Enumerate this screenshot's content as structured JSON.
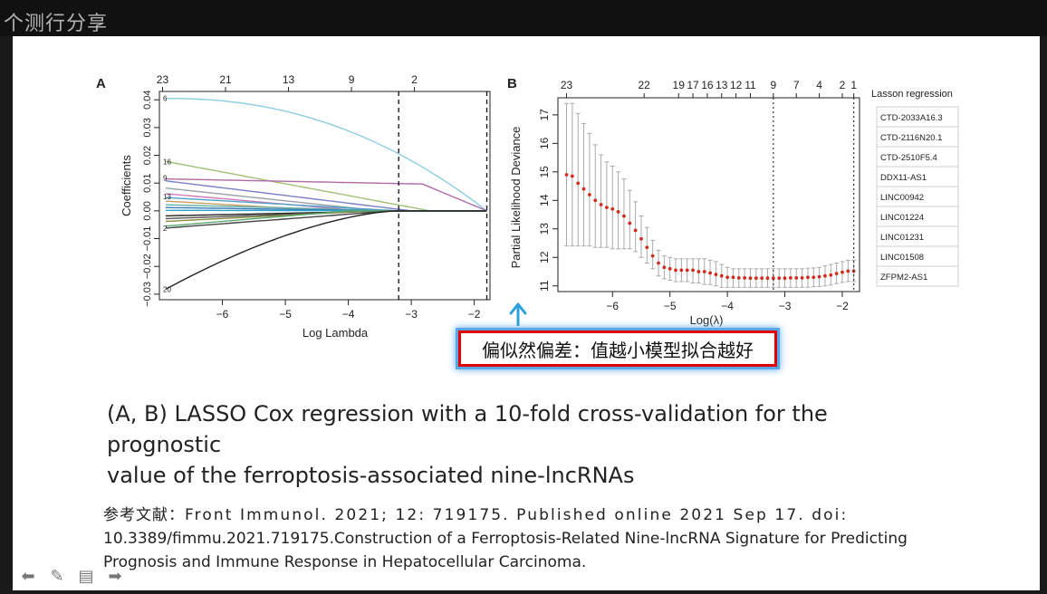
{
  "window": {
    "watermark": "个测行分享"
  },
  "panel_a": {
    "letter": "A",
    "xlabel": "Log Lambda",
    "ylabel": "Coefficients",
    "x_ticks": [
      -6,
      -5,
      -4,
      -3,
      -2
    ],
    "y_ticks": [
      -0.03,
      -0.02,
      -0.01,
      0.0,
      0.01,
      0.02,
      0.03,
      0.04
    ],
    "top_ticks": [
      {
        "x": -6.95,
        "label": "23"
      },
      {
        "x": -5.95,
        "label": "21"
      },
      {
        "x": -4.95,
        "label": "13"
      },
      {
        "x": -3.95,
        "label": "9"
      },
      {
        "x": -2.95,
        "label": "2"
      }
    ],
    "xlim": [
      -7.0,
      -1.75
    ],
    "ylim": [
      -0.032,
      0.043
    ],
    "vlines": [
      -3.2,
      -1.8
    ],
    "end_labels": [
      {
        "label": "6",
        "y": 0.0405
      },
      {
        "label": "16",
        "y": 0.0178
      },
      {
        "label": "9",
        "y": 0.0118
      },
      {
        "label": "13",
        "y": 0.0052
      },
      {
        "label": "20",
        "y": -0.0282
      },
      {
        "label": "2",
        "y": -0.0062
      }
    ],
    "series": [
      {
        "color": "#8ccde0",
        "y0": 0.0405,
        "shape": "concave",
        "zero_at": -1.8
      },
      {
        "color": "#a3c07a",
        "y0": 0.0178,
        "shape": "linear",
        "zero_at": -2.7
      },
      {
        "color": "#b06aa6",
        "y0": 0.0115,
        "shape": "flat_then_drop",
        "zero_at": -1.8
      },
      {
        "color": "#7a7fc8",
        "y0": 0.0108,
        "shape": "linear",
        "zero_at": -3.0
      },
      {
        "color": "#9aa0a8",
        "y0": 0.0082,
        "shape": "linear",
        "zero_at": -3.5
      },
      {
        "color": "#d07ab8",
        "y0": 0.0062,
        "shape": "linear",
        "zero_at": -3.8
      },
      {
        "color": "#4fa2c8",
        "y0": 0.0048,
        "shape": "linear",
        "zero_at": -3.2
      },
      {
        "color": "#c8a060",
        "y0": 0.0035,
        "shape": "linear",
        "zero_at": -4.2
      },
      {
        "color": "#62b0a8",
        "y0": 0.0022,
        "shape": "linear",
        "zero_at": -3.2
      },
      {
        "color": "#3a7ab8",
        "y0": 0.0012,
        "shape": "linear",
        "zero_at": -3.3
      },
      {
        "color": "#2aa2d0",
        "y0": 0.0002,
        "shape": "linear",
        "zero_at": -1.8
      },
      {
        "color": "#222222",
        "y0": -0.0018,
        "shape": "linear",
        "zero_at": -3.2
      },
      {
        "color": "#555555",
        "y0": -0.0028,
        "shape": "linear",
        "zero_at": -3.4
      },
      {
        "color": "#8a8a40",
        "y0": -0.0038,
        "shape": "linear",
        "zero_at": -3.6
      },
      {
        "color": "#58a870",
        "y0": -0.0055,
        "shape": "linear",
        "zero_at": -4.0
      },
      {
        "color": "#444444",
        "y0": -0.0062,
        "shape": "linear",
        "zero_at": -3.3
      },
      {
        "color": "#222222",
        "y0": -0.0282,
        "shape": "convex",
        "zero_at": -3.2
      }
    ]
  },
  "chart_data": {
    "type": "scatter",
    "xlabel": "Log(λ)",
    "ylabel": "Partial Likelihood Deviance",
    "x_ticks": [
      -6,
      -5,
      -4,
      -3,
      -2
    ],
    "y_ticks": [
      11,
      12,
      13,
      14,
      15,
      16,
      17
    ],
    "xlim": [
      -6.95,
      -1.7
    ],
    "ylim": [
      10.8,
      17.6
    ],
    "top_ticks": [
      {
        "x": -6.8,
        "label": "23"
      },
      {
        "x": -5.45,
        "label": "22"
      },
      {
        "x": -4.85,
        "label": "19"
      },
      {
        "x": -4.6,
        "label": "17"
      },
      {
        "x": -4.35,
        "label": "16"
      },
      {
        "x": -4.1,
        "label": "13"
      },
      {
        "x": -3.85,
        "label": "12"
      },
      {
        "x": -3.6,
        "label": "11"
      },
      {
        "x": -3.2,
        "label": "9"
      },
      {
        "x": -2.8,
        "label": "7"
      },
      {
        "x": -2.4,
        "label": "4"
      },
      {
        "x": -2.0,
        "label": "2"
      },
      {
        "x": -1.8,
        "label": "1"
      }
    ],
    "vlines": [
      -3.2,
      -1.8
    ],
    "points": [
      {
        "x": -6.8,
        "y": 14.9,
        "lo": 12.4,
        "hi": 17.4
      },
      {
        "x": -6.7,
        "y": 14.85,
        "lo": 12.4,
        "hi": 17.4
      },
      {
        "x": -6.6,
        "y": 14.6,
        "lo": 12.4,
        "hi": 17.05
      },
      {
        "x": -6.5,
        "y": 14.4,
        "lo": 12.4,
        "hi": 16.7
      },
      {
        "x": -6.4,
        "y": 14.2,
        "lo": 12.4,
        "hi": 16.35
      },
      {
        "x": -6.3,
        "y": 14.0,
        "lo": 12.35,
        "hi": 15.95
      },
      {
        "x": -6.2,
        "y": 13.85,
        "lo": 12.35,
        "hi": 15.6
      },
      {
        "x": -6.1,
        "y": 13.75,
        "lo": 12.35,
        "hi": 15.35
      },
      {
        "x": -6.0,
        "y": 13.7,
        "lo": 12.3,
        "hi": 15.2
      },
      {
        "x": -5.9,
        "y": 13.6,
        "lo": 12.3,
        "hi": 15.0
      },
      {
        "x": -5.8,
        "y": 13.45,
        "lo": 12.3,
        "hi": 14.75
      },
      {
        "x": -5.7,
        "y": 13.2,
        "lo": 12.3,
        "hi": 14.35
      },
      {
        "x": -5.6,
        "y": 12.95,
        "lo": 12.2,
        "hi": 13.95
      },
      {
        "x": -5.5,
        "y": 12.65,
        "lo": 12.0,
        "hi": 13.45
      },
      {
        "x": -5.4,
        "y": 12.35,
        "lo": 11.8,
        "hi": 13.05
      },
      {
        "x": -5.3,
        "y": 12.05,
        "lo": 11.6,
        "hi": 12.6
      },
      {
        "x": -5.2,
        "y": 11.8,
        "lo": 11.35,
        "hi": 12.25
      },
      {
        "x": -5.1,
        "y": 11.65,
        "lo": 11.25,
        "hi": 12.05
      },
      {
        "x": -5.0,
        "y": 11.6,
        "lo": 11.2,
        "hi": 12.0
      },
      {
        "x": -4.9,
        "y": 11.55,
        "lo": 11.15,
        "hi": 11.95
      },
      {
        "x": -4.8,
        "y": 11.55,
        "lo": 11.15,
        "hi": 11.95
      },
      {
        "x": -4.7,
        "y": 11.55,
        "lo": 11.15,
        "hi": 11.95
      },
      {
        "x": -4.6,
        "y": 11.55,
        "lo": 11.1,
        "hi": 11.95
      },
      {
        "x": -4.5,
        "y": 11.5,
        "lo": 11.1,
        "hi": 11.95
      },
      {
        "x": -4.4,
        "y": 11.5,
        "lo": 11.05,
        "hi": 11.95
      },
      {
        "x": -4.3,
        "y": 11.45,
        "lo": 11.05,
        "hi": 11.9
      },
      {
        "x": -4.2,
        "y": 11.4,
        "lo": 11.0,
        "hi": 11.85
      },
      {
        "x": -4.1,
        "y": 11.35,
        "lo": 10.95,
        "hi": 11.75
      },
      {
        "x": -4.0,
        "y": 11.3,
        "lo": 10.95,
        "hi": 11.65
      },
      {
        "x": -3.9,
        "y": 11.3,
        "lo": 10.95,
        "hi": 11.6
      },
      {
        "x": -3.8,
        "y": 11.28,
        "lo": 10.95,
        "hi": 11.6
      },
      {
        "x": -3.7,
        "y": 11.28,
        "lo": 10.95,
        "hi": 11.6
      },
      {
        "x": -3.6,
        "y": 11.27,
        "lo": 10.95,
        "hi": 11.6
      },
      {
        "x": -3.5,
        "y": 11.27,
        "lo": 10.95,
        "hi": 11.6
      },
      {
        "x": -3.4,
        "y": 11.27,
        "lo": 10.95,
        "hi": 11.6
      },
      {
        "x": -3.3,
        "y": 11.27,
        "lo": 10.95,
        "hi": 11.6
      },
      {
        "x": -3.2,
        "y": 11.27,
        "lo": 10.95,
        "hi": 11.6
      },
      {
        "x": -3.1,
        "y": 11.27,
        "lo": 10.95,
        "hi": 11.6
      },
      {
        "x": -3.0,
        "y": 11.27,
        "lo": 10.95,
        "hi": 11.6
      },
      {
        "x": -2.9,
        "y": 11.28,
        "lo": 10.95,
        "hi": 11.6
      },
      {
        "x": -2.8,
        "y": 11.28,
        "lo": 10.95,
        "hi": 11.6
      },
      {
        "x": -2.7,
        "y": 11.28,
        "lo": 10.95,
        "hi": 11.6
      },
      {
        "x": -2.6,
        "y": 11.3,
        "lo": 10.95,
        "hi": 11.62
      },
      {
        "x": -2.5,
        "y": 11.3,
        "lo": 10.97,
        "hi": 11.63
      },
      {
        "x": -2.4,
        "y": 11.32,
        "lo": 10.98,
        "hi": 11.65
      },
      {
        "x": -2.3,
        "y": 11.35,
        "lo": 11.0,
        "hi": 11.7
      },
      {
        "x": -2.2,
        "y": 11.38,
        "lo": 11.03,
        "hi": 11.75
      },
      {
        "x": -2.1,
        "y": 11.43,
        "lo": 11.08,
        "hi": 11.8
      },
      {
        "x": -2.0,
        "y": 11.48,
        "lo": 11.12,
        "hi": 11.85
      },
      {
        "x": -1.9,
        "y": 11.52,
        "lo": 11.15,
        "hi": 11.9
      },
      {
        "x": -1.8,
        "y": 11.52,
        "lo": 11.15,
        "hi": 11.9
      }
    ]
  },
  "panel_b": {
    "letter": "B"
  },
  "legend": {
    "title": "Lasson regression",
    "items": [
      "CTD-2033A16.3",
      "CTD-2116N20.1",
      "CTD-2510F5.4",
      "DDX11-AS1",
      "LINC00942",
      "LINC01224",
      "LINC01231",
      "LINC01508",
      "ZFPM2-AS1"
    ]
  },
  "callout": {
    "text": "偏似然偏差：值越小模型拟合越好"
  },
  "caption": {
    "line1": "(A, B) LASSO Cox regression with a 10-fold cross-validation for the prognostic",
    "line2": "value of the ferroptosis-associated nine-lncRNAs"
  },
  "reference": {
    "label": "参考文献：",
    "line1": "Front Immunol. 2021; 12: 719175. Published online 2021 Sep 17. doi:",
    "line2": "10.3389/fimmu.2021.719175.Construction of a Ferroptosis-Related Nine-lncRNA Signature for Predicting",
    "line3": "Prognosis and Immune Response in Hepatocellular Carcinoma."
  },
  "colors": {
    "callout_border": "#e00000",
    "callout_glow": "#5aa7e8",
    "cv_point": "#d42b1e",
    "cv_bar": "#aaaaaa",
    "arrow": "#2ba0dc"
  }
}
